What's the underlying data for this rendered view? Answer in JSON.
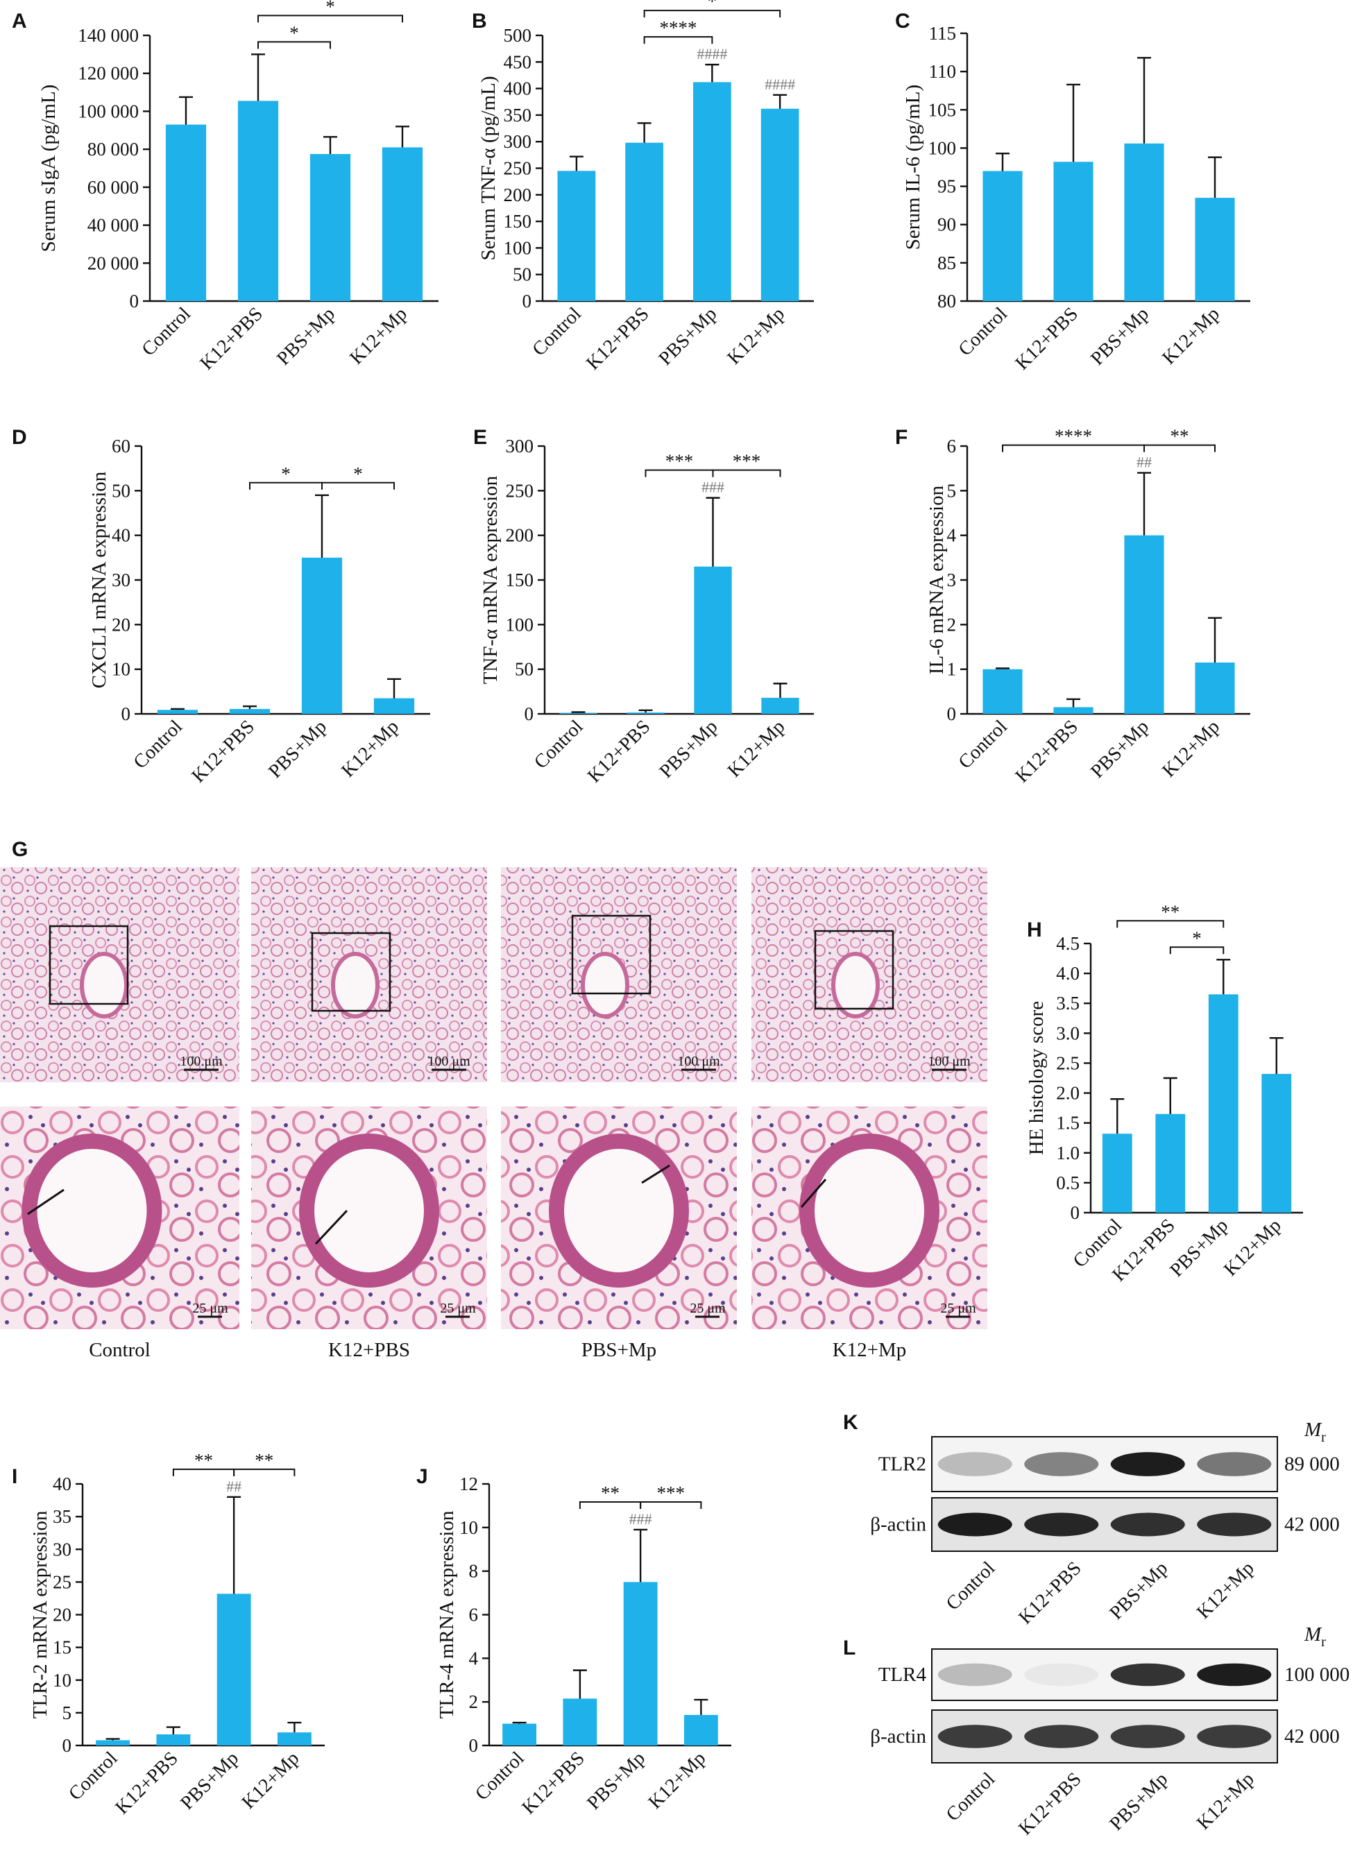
{
  "chart_data": [
    {
      "panel": "A",
      "type": "bar",
      "ylabel": "Serum sIgA (pg/mL)",
      "color": "#1fb1e9",
      "categories": [
        "Control",
        "K12+PBS",
        "PBS+Mp",
        "K12+Mp"
      ],
      "values": [
        93000,
        105500,
        77500,
        81000
      ],
      "errors": [
        14500,
        24500,
        9000,
        11000
      ],
      "ylim": [
        0,
        140000
      ],
      "yticks": [
        0,
        {
          "value": 20000,
          "label": "20 000"
        },
        {
          "value": 40000,
          "label": "40 000"
        },
        {
          "value": 60000,
          "label": "60 000"
        },
        {
          "value": 80000,
          "label": "80 000"
        },
        {
          "value": 100000,
          "label": "100 000"
        },
        {
          "value": 120000,
          "label": "120 000"
        },
        {
          "value": 140000,
          "label": "140 000"
        }
      ],
      "comparisons": [
        {
          "from": "K12+PBS",
          "to": "PBS+Mp",
          "label": "*"
        },
        {
          "from": "K12+PBS",
          "to": "K12+Mp",
          "label": "*"
        }
      ]
    },
    {
      "panel": "B",
      "type": "bar",
      "ylabel": "Serum TNF-α (pg/mL)",
      "color": "#1fb1e9",
      "categories": [
        "Control",
        "K12+PBS",
        "PBS+Mp",
        "K12+Mp"
      ],
      "values": [
        245,
        298,
        412,
        362
      ],
      "errors": [
        27,
        37,
        33,
        26
      ],
      "ylim": [
        0,
        500
      ],
      "yticks": [
        0,
        50,
        100,
        150,
        200,
        250,
        300,
        350,
        400,
        450,
        500
      ],
      "hash_labels": [
        null,
        null,
        "####",
        "####"
      ],
      "comparisons": [
        {
          "from": "K12+PBS",
          "to": "PBS+Mp",
          "label": "****"
        },
        {
          "from": "K12+PBS",
          "to": "K12+Mp",
          "label": "*"
        }
      ]
    },
    {
      "panel": "C",
      "type": "bar",
      "ylabel": "Serum IL-6 (pg/mL)",
      "color": "#1fb1e9",
      "categories": [
        "Control",
        "K12+PBS",
        "PBS+Mp",
        "K12+Mp"
      ],
      "values": [
        97,
        98.2,
        100.6,
        93.5
      ],
      "errors": [
        2.3,
        10.1,
        11.2,
        5.3
      ],
      "ylim": [
        80,
        115
      ],
      "yticks": [
        80,
        85,
        90,
        95,
        100,
        105,
        110,
        115
      ]
    },
    {
      "panel": "D",
      "type": "bar",
      "ylabel": "CXCL1 mRNA expression",
      "color": "#1fb1e9",
      "categories": [
        "Control",
        "K12+PBS",
        "PBS+Mp",
        "K12+Mp"
      ],
      "values": [
        0.9,
        1.1,
        35,
        3.5
      ],
      "errors": [
        0.2,
        0.6,
        14,
        4.3
      ],
      "ylim": [
        0,
        60
      ],
      "yticks": [
        0,
        10,
        20,
        30,
        40,
        50,
        60
      ],
      "comparisons": [
        {
          "from": "K12+PBS",
          "to": "PBS+Mp",
          "label": "*"
        },
        {
          "from": "PBS+Mp",
          "to": "K12+Mp",
          "label": "*"
        }
      ]
    },
    {
      "panel": "E",
      "type": "bar",
      "ylabel": "TNF-α mRNA expression",
      "color": "#1fb1e9",
      "categories": [
        "Control",
        "K12+PBS",
        "PBS+Mp",
        "K12+Mp"
      ],
      "values": [
        1,
        1.5,
        165,
        18
      ],
      "errors": [
        1,
        2.5,
        77,
        16
      ],
      "ylim": [
        0,
        300
      ],
      "yticks": [
        0,
        50,
        100,
        150,
        200,
        250,
        300
      ],
      "hash_labels": [
        null,
        null,
        "###",
        null
      ],
      "comparisons": [
        {
          "from": "K12+PBS",
          "to": "PBS+Mp",
          "label": "***"
        },
        {
          "from": "PBS+Mp",
          "to": "K12+Mp",
          "label": "***"
        }
      ]
    },
    {
      "panel": "F",
      "type": "bar",
      "ylabel": "IL-6 mRNA expression",
      "color": "#1fb1e9",
      "categories": [
        "Control",
        "K12+PBS",
        "PBS+Mp",
        "K12+Mp"
      ],
      "values": [
        1,
        0.15,
        4,
        1.15
      ],
      "errors": [
        0.02,
        0.18,
        1.4,
        1
      ],
      "ylim": [
        0,
        6
      ],
      "yticks": [
        0,
        1,
        2,
        3,
        4,
        5,
        6
      ],
      "hash_labels": [
        null,
        null,
        "##",
        null
      ],
      "comparisons": [
        {
          "from": "Control",
          "to": "PBS+Mp",
          "label": "****"
        },
        {
          "from": "PBS+Mp",
          "to": "K12+Mp",
          "label": "**"
        }
      ]
    },
    {
      "panel": "H",
      "type": "bar",
      "ylabel": "HE histology score",
      "color": "#1fb1e9",
      "categories": [
        "Control",
        "K12+PBS",
        "PBS+Mp",
        "K12+Mp"
      ],
      "values": [
        1.32,
        1.65,
        3.65,
        2.32
      ],
      "errors": [
        0.58,
        0.6,
        0.58,
        0.6
      ],
      "ylim": [
        0,
        4.5
      ],
      "yticks": [
        0,
        {
          "value": 0.5,
          "label": "0.5"
        },
        {
          "value": 1,
          "label": "1.0"
        },
        {
          "value": 1.5,
          "label": "1.5"
        },
        {
          "value": 2,
          "label": "2.0"
        },
        {
          "value": 2.5,
          "label": "2.5"
        },
        {
          "value": 3,
          "label": "3.0"
        },
        {
          "value": 3.5,
          "label": "3.5"
        },
        {
          "value": 4,
          "label": "4.0"
        },
        {
          "value": 4.5,
          "label": "4.5"
        }
      ],
      "comparisons": [
        {
          "from": "K12+PBS",
          "to": "PBS+Mp",
          "label": "*"
        },
        {
          "from": "Control",
          "to": "PBS+Mp",
          "label": "**"
        }
      ]
    },
    {
      "panel": "I",
      "type": "bar",
      "ylabel": "TLR-2 mRNA expression",
      "color": "#1fb1e9",
      "categories": [
        "Control",
        "K12+PBS",
        "PBS+Mp",
        "K12+Mp"
      ],
      "values": [
        0.8,
        1.7,
        23.2,
        2
      ],
      "errors": [
        0.2,
        1.1,
        14.8,
        1.5
      ],
      "ylim": [
        0,
        40
      ],
      "yticks": [
        0,
        5,
        10,
        15,
        20,
        25,
        30,
        35,
        40
      ],
      "hash_labels": [
        null,
        null,
        "##",
        null
      ],
      "comparisons": [
        {
          "from": "K12+PBS",
          "to": "PBS+Mp",
          "label": "**"
        },
        {
          "from": "PBS+Mp",
          "to": "K12+Mp",
          "label": "**"
        }
      ]
    },
    {
      "panel": "J",
      "type": "bar",
      "ylabel": "TLR-4 mRNA expression",
      "color": "#1fb1e9",
      "categories": [
        "Control",
        "K12+PBS",
        "PBS+Mp",
        "K12+Mp"
      ],
      "values": [
        1,
        2.15,
        7.5,
        1.4
      ],
      "errors": [
        0.05,
        1.3,
        2.4,
        0.7
      ],
      "ylim": [
        0,
        12
      ],
      "yticks": [
        0,
        2,
        4,
        6,
        8,
        10,
        12
      ],
      "hash_labels": [
        null,
        null,
        "###",
        null
      ],
      "comparisons": [
        {
          "from": "K12+PBS",
          "to": "PBS+Mp",
          "label": "**"
        },
        {
          "from": "PBS+Mp",
          "to": "K12+Mp",
          "label": "***"
        }
      ]
    }
  ],
  "histology": {
    "panel": "G",
    "scale_bars": [
      "100 μm",
      "25 μm"
    ],
    "labels": [
      "Control",
      "K12+PBS",
      "PBS+Mp",
      "K12+Mp"
    ]
  },
  "blots": [
    {
      "panel": "K",
      "mass_label": [
        "M",
        "r"
      ],
      "lanes": [
        "Control",
        "K12+PBS",
        "PBS+Mp",
        "K12+Mp"
      ],
      "rows": [
        {
          "name": "TLR2",
          "mass": "89 000"
        },
        {
          "name": "β-actin",
          "mass": "42 000"
        }
      ]
    },
    {
      "panel": "L",
      "mass_label": [
        "M",
        "r"
      ],
      "lanes": [
        "Control",
        "K12+PBS",
        "PBS+Mp",
        "K12+Mp"
      ],
      "rows": [
        {
          "name": "TLR4",
          "mass": "100 000"
        },
        {
          "name": "β-actin",
          "mass": "42 000"
        }
      ]
    }
  ]
}
